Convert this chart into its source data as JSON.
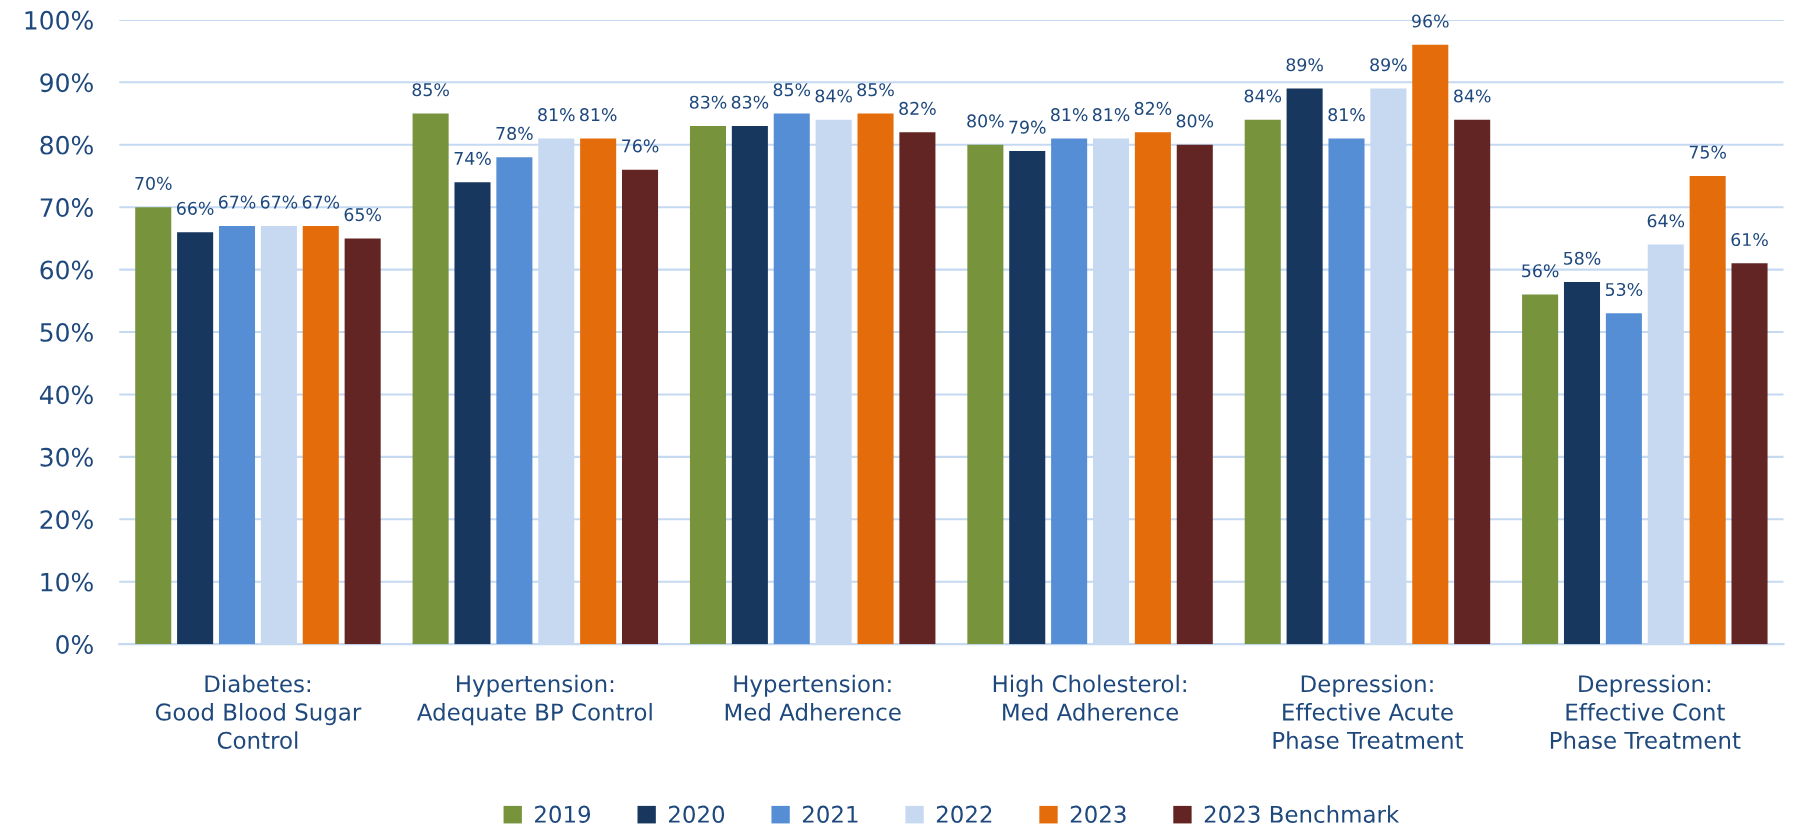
{
  "chart_data": {
    "type": "bar",
    "categories": [
      "Diabetes:\nGood Blood Sugar\nControl",
      "Hypertension:\nAdequate BP Control",
      "Hypertension:\nMed Adherence",
      "High Cholesterol:\nMed Adherence",
      "Depression:\nEffective Acute\nPhase Treatment",
      "Depression:\nEffective Cont\nPhase Treatment"
    ],
    "series": [
      {
        "name": "2019",
        "color": "#77933c",
        "values": [
          70,
          85,
          83,
          80,
          84,
          56
        ],
        "value_labels": [
          "70%",
          "85%",
          "83%",
          "80%",
          "84%",
          "56%"
        ]
      },
      {
        "name": "2020",
        "color": "#17375e",
        "values": [
          66,
          74,
          83,
          79,
          89,
          58
        ],
        "value_labels": [
          "66%",
          "74%",
          "83%",
          "79%",
          "89%",
          "58%"
        ]
      },
      {
        "name": "2021",
        "color": "#558ed5",
        "values": [
          67,
          78,
          85,
          81,
          81,
          53
        ],
        "value_labels": [
          "67%",
          "78%",
          "85%",
          "81%",
          "81%",
          "53%"
        ]
      },
      {
        "name": "2022",
        "color": "#c6d9f1",
        "values": [
          67,
          81,
          84,
          81,
          89,
          64
        ],
        "value_labels": [
          "67%",
          "81%",
          "84%",
          "81%",
          "89%",
          "64%"
        ]
      },
      {
        "name": "2023",
        "color": "#e46c0a",
        "values": [
          67,
          81,
          85,
          82,
          96,
          75
        ],
        "value_labels": [
          "67%",
          "81%",
          "85%",
          "82%",
          "96%",
          "75%"
        ]
      },
      {
        "name": "2023 Benchmark",
        "color": "#632523",
        "values": [
          65,
          76,
          82,
          80,
          84,
          61
        ],
        "value_labels": [
          "65%",
          "76%",
          "82%",
          "80%",
          "84%",
          "61%"
        ]
      }
    ],
    "ylim": [
      0,
      100
    ],
    "yticks": [
      {
        "value": 0,
        "label": "0%"
      },
      {
        "value": 10,
        "label": "10%"
      },
      {
        "value": 20,
        "label": "20%"
      },
      {
        "value": 30,
        "label": "30%"
      },
      {
        "value": 40,
        "label": "40%"
      },
      {
        "value": 50,
        "label": "50%"
      },
      {
        "value": 60,
        "label": "60%"
      },
      {
        "value": 70,
        "label": "70%"
      },
      {
        "value": 80,
        "label": "80%"
      },
      {
        "value": 90,
        "label": "90%"
      },
      {
        "value": 100,
        "label": "100%"
      }
    ],
    "grid": "y",
    "legend": "bottom"
  }
}
